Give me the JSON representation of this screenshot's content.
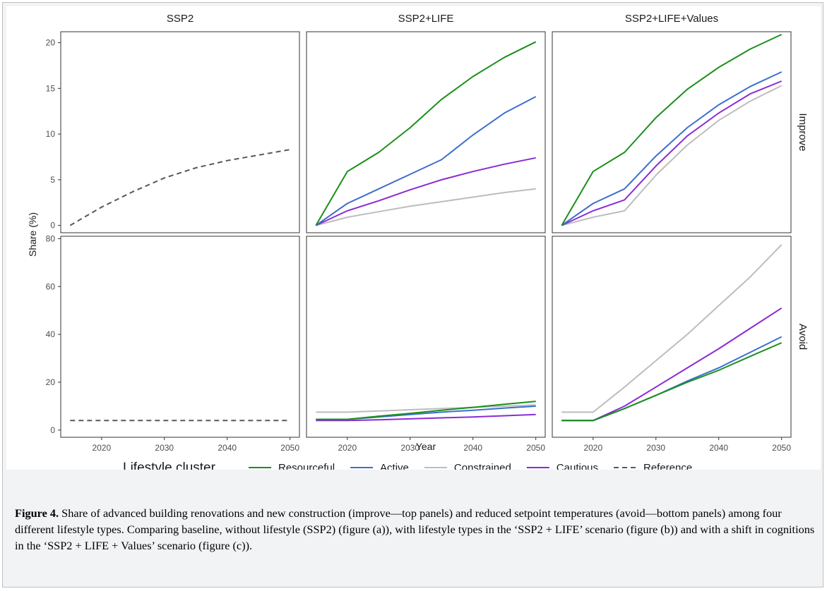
{
  "chart_data": {
    "type": "line",
    "facet_columns": [
      "SSP2",
      "SSP2+LIFE",
      "SSP2+LIFE+Values"
    ],
    "facet_rows": [
      "Improve",
      "Avoid"
    ],
    "xlabel": "Year",
    "ylabel": "Share (%)",
    "x_ticks": [
      2020,
      2030,
      2040,
      2050
    ],
    "xlim": [
      2013.5,
      2051.5
    ],
    "y_axes": {
      "Improve": {
        "ylim": [
          -0.8,
          21.2
        ],
        "ticks": [
          0,
          5,
          10,
          15,
          20
        ]
      },
      "Avoid": {
        "ylim": [
          -3,
          81
        ],
        "ticks": [
          0,
          20,
          40,
          60,
          80
        ]
      }
    },
    "legend": {
      "title": "Lifestyle cluster",
      "position": "bottom",
      "entries": [
        {
          "name": "Resourceful",
          "color": "#1a8f1a",
          "dash": "solid"
        },
        {
          "name": "Active",
          "color": "#3d6fcc",
          "dash": "solid"
        },
        {
          "name": "Constrained",
          "color": "#bdbdbd",
          "dash": "solid"
        },
        {
          "name": "Cautious",
          "color": "#8a2bd6",
          "dash": "solid"
        },
        {
          "name": "Reference",
          "color": "#595959",
          "dash": "dashed"
        }
      ]
    },
    "x": [
      2015,
      2020,
      2025,
      2030,
      2035,
      2040,
      2045,
      2050
    ],
    "panels": [
      {
        "row": "Improve",
        "col": "SSP2",
        "series": [
          {
            "name": "Reference",
            "values": [
              0,
              2.0,
              3.7,
              5.2,
              6.3,
              7.1,
              7.7,
              8.3
            ]
          }
        ]
      },
      {
        "row": "Improve",
        "col": "SSP2+LIFE",
        "series": [
          {
            "name": "Constrained",
            "values": [
              0,
              0.9,
              1.5,
              2.1,
              2.6,
              3.1,
              3.6,
              4.0
            ]
          },
          {
            "name": "Cautious",
            "values": [
              0,
              1.6,
              2.7,
              3.9,
              5.0,
              5.9,
              6.7,
              7.4
            ]
          },
          {
            "name": "Active",
            "values": [
              0,
              2.4,
              4.0,
              5.6,
              7.2,
              9.9,
              12.3,
              14.1
            ]
          },
          {
            "name": "Resourceful",
            "values": [
              0,
              5.9,
              8.0,
              10.7,
              13.8,
              16.3,
              18.4,
              20.1
            ]
          }
        ]
      },
      {
        "row": "Improve",
        "col": "SSP2+LIFE+Values",
        "series": [
          {
            "name": "Constrained",
            "values": [
              0,
              0.9,
              1.6,
              5.5,
              8.8,
              11.5,
              13.6,
              15.3
            ]
          },
          {
            "name": "Cautious",
            "values": [
              0,
              1.6,
              2.8,
              6.5,
              9.8,
              12.3,
              14.4,
              15.8
            ]
          },
          {
            "name": "Active",
            "values": [
              0,
              2.4,
              4.0,
              7.6,
              10.7,
              13.2,
              15.2,
              16.8
            ]
          },
          {
            "name": "Resourceful",
            "values": [
              0,
              5.9,
              8.0,
              11.8,
              14.9,
              17.3,
              19.3,
              20.9
            ]
          }
        ]
      },
      {
        "row": "Avoid",
        "col": "SSP2",
        "series": [
          {
            "name": "Reference",
            "values": [
              4,
              4,
              4,
              4,
              4,
              4,
              4,
              4
            ]
          }
        ]
      },
      {
        "row": "Avoid",
        "col": "SSP2+LIFE",
        "series": [
          {
            "name": "Constrained",
            "values": [
              7.5,
              7.5,
              8.0,
              8.5,
              9.0,
              9.5,
              10.0,
              10.5
            ]
          },
          {
            "name": "Cautious",
            "values": [
              4.0,
              4.0,
              4.3,
              4.7,
              5.1,
              5.5,
              6.0,
              6.5
            ]
          },
          {
            "name": "Active",
            "values": [
              4.5,
              4.5,
              5.5,
              6.5,
              7.5,
              8.3,
              9.2,
              10.0
            ]
          },
          {
            "name": "Resourceful",
            "values": [
              4.5,
              4.5,
              5.8,
              7.0,
              8.3,
              9.5,
              10.8,
              12.0
            ]
          }
        ]
      },
      {
        "row": "Avoid",
        "col": "SSP2+LIFE+Values",
        "series": [
          {
            "name": "Constrained",
            "values": [
              7.5,
              7.5,
              18,
              29,
              40,
              52,
              64,
              77.5
            ]
          },
          {
            "name": "Cautious",
            "values": [
              4.0,
              4.0,
              10,
              18,
              26,
              34,
              42.5,
              51
            ]
          },
          {
            "name": "Active",
            "values": [
              4.0,
              4.0,
              9,
              14.5,
              20.5,
              26,
              32.5,
              39
            ]
          },
          {
            "name": "Resourceful",
            "values": [
              4.0,
              4.0,
              9,
              14.5,
              20,
              25,
              30.8,
              36.5
            ]
          }
        ]
      }
    ]
  },
  "caption": {
    "label": "Figure 4.",
    "text": " Share of advanced building renovations and new construction (improve—top panels) and reduced setpoint temperatures (avoid—bottom panels) among four different lifestyle types. Comparing baseline, without lifestyle (SSP2) (figure (a)), with lifestyle types in the ‘SSP2 + LIFE’ scenario (figure (b)) and with a shift in cognitions in the ‘SSP2 + LIFE + Values’ scenario (figure (c))."
  }
}
